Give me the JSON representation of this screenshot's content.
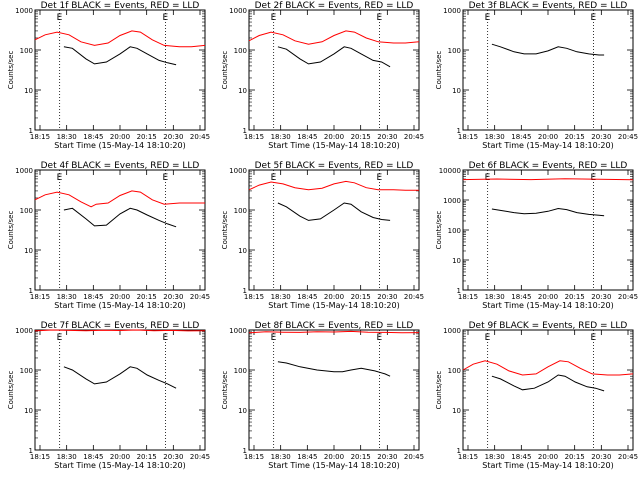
{
  "figure": {
    "title": "",
    "xlabel": "Start Time (15-May-14 18:10:20)",
    "ylabel": "Counts/sec",
    "xticks": [
      "18:15",
      "18:30",
      "18:45",
      "20:00",
      "20:15",
      "20:30",
      "20:45"
    ],
    "yticks": [
      {
        "value": 1,
        "label": "1"
      },
      {
        "value": 10,
        "label": "10"
      },
      {
        "value": 100,
        "label": "100"
      },
      {
        "value": 1000,
        "label": "1000"
      }
    ],
    "yticks_wide": [
      {
        "value": 1,
        "label": "1"
      },
      {
        "value": 10,
        "label": "10"
      },
      {
        "value": 100,
        "label": "100"
      },
      {
        "value": 1000,
        "label": "1000"
      },
      {
        "value": 10000,
        "label": "10000"
      }
    ],
    "marker_labels": [
      "E",
      "E"
    ],
    "colors": {
      "events": "#000000",
      "lld": "#ff0000"
    }
  },
  "chart_data": [
    {
      "type": "line",
      "title": "Det 1f BLACK = Events, RED = LLD",
      "ylim": [
        1,
        1000
      ],
      "log_y": true,
      "series": [
        {
          "color": "#ff0000",
          "values": [
            [
              0.0,
              180
            ],
            [
              0.06,
              240
            ],
            [
              0.13,
              280
            ],
            [
              0.2,
              240
            ],
            [
              0.27,
              160
            ],
            [
              0.35,
              130
            ],
            [
              0.43,
              150
            ],
            [
              0.5,
              230
            ],
            [
              0.57,
              300
            ],
            [
              0.62,
              280
            ],
            [
              0.69,
              180
            ],
            [
              0.76,
              130
            ],
            [
              0.85,
              120
            ],
            [
              0.92,
              120
            ],
            [
              1.0,
              130
            ]
          ]
        },
        {
          "color": "#000000",
          "values": [
            [
              0.17,
              120
            ],
            [
              0.22,
              110
            ],
            [
              0.3,
              60
            ],
            [
              0.35,
              45
            ],
            [
              0.42,
              50
            ],
            [
              0.5,
              80
            ],
            [
              0.56,
              120
            ],
            [
              0.6,
              110
            ],
            [
              0.66,
              80
            ],
            [
              0.73,
              55
            ],
            [
              0.78,
              48
            ],
            [
              0.83,
              43
            ]
          ]
        }
      ]
    },
    {
      "type": "line",
      "title": "Det 2f BLACK = Events, RED = LLD",
      "ylim": [
        1,
        1000
      ],
      "log_y": true,
      "series": [
        {
          "color": "#ff0000",
          "values": [
            [
              0.0,
              170
            ],
            [
              0.06,
              230
            ],
            [
              0.13,
              280
            ],
            [
              0.2,
              240
            ],
            [
              0.27,
              170
            ],
            [
              0.35,
              140
            ],
            [
              0.43,
              160
            ],
            [
              0.5,
              230
            ],
            [
              0.57,
              300
            ],
            [
              0.62,
              280
            ],
            [
              0.69,
              200
            ],
            [
              0.76,
              160
            ],
            [
              0.85,
              150
            ],
            [
              0.92,
              150
            ],
            [
              1.0,
              160
            ]
          ]
        },
        {
          "color": "#000000",
          "values": [
            [
              0.17,
              120
            ],
            [
              0.22,
              105
            ],
            [
              0.3,
              60
            ],
            [
              0.35,
              45
            ],
            [
              0.42,
              50
            ],
            [
              0.5,
              80
            ],
            [
              0.56,
              120
            ],
            [
              0.6,
              110
            ],
            [
              0.66,
              80
            ],
            [
              0.73,
              55
            ],
            [
              0.78,
              50
            ],
            [
              0.83,
              38
            ]
          ]
        }
      ]
    },
    {
      "type": "line",
      "title": "Det 3f BLACK = Events, RED = LLD",
      "ylim": [
        1,
        1000
      ],
      "log_y": true,
      "series": [
        {
          "color": "#000000",
          "values": [
            [
              0.17,
              140
            ],
            [
              0.22,
              120
            ],
            [
              0.3,
              90
            ],
            [
              0.36,
              80
            ],
            [
              0.43,
              80
            ],
            [
              0.5,
              95
            ],
            [
              0.56,
              120
            ],
            [
              0.61,
              110
            ],
            [
              0.67,
              90
            ],
            [
              0.74,
              80
            ],
            [
              0.8,
              75
            ],
            [
              0.83,
              75
            ]
          ]
        }
      ]
    },
    {
      "type": "line",
      "title": "Det 4f BLACK = Events, RED = LLD",
      "ylim": [
        1,
        1000
      ],
      "log_y": true,
      "series": [
        {
          "color": "#ff0000",
          "values": [
            [
              0.0,
              180
            ],
            [
              0.06,
              240
            ],
            [
              0.13,
              280
            ],
            [
              0.2,
              240
            ],
            [
              0.27,
              160
            ],
            [
              0.33,
              120
            ],
            [
              0.36,
              140
            ],
            [
              0.43,
              150
            ],
            [
              0.5,
              230
            ],
            [
              0.57,
              300
            ],
            [
              0.62,
              280
            ],
            [
              0.69,
              180
            ],
            [
              0.76,
              140
            ],
            [
              0.85,
              150
            ],
            [
              0.92,
              150
            ],
            [
              1.0,
              150
            ]
          ]
        },
        {
          "color": "#000000",
          "values": [
            [
              0.17,
              100
            ],
            [
              0.22,
              110
            ],
            [
              0.3,
              60
            ],
            [
              0.35,
              40
            ],
            [
              0.42,
              42
            ],
            [
              0.5,
              80
            ],
            [
              0.56,
              110
            ],
            [
              0.6,
              100
            ],
            [
              0.66,
              75
            ],
            [
              0.73,
              55
            ],
            [
              0.78,
              45
            ],
            [
              0.83,
              38
            ]
          ]
        }
      ]
    },
    {
      "type": "line",
      "title": "Det 5f BLACK = Events, RED = LLD",
      "ylim": [
        1,
        1000
      ],
      "log_y": true,
      "series": [
        {
          "color": "#ff0000",
          "values": [
            [
              0.0,
              320
            ],
            [
              0.06,
              420
            ],
            [
              0.13,
              500
            ],
            [
              0.2,
              450
            ],
            [
              0.27,
              360
            ],
            [
              0.35,
              320
            ],
            [
              0.43,
              350
            ],
            [
              0.5,
              450
            ],
            [
              0.57,
              520
            ],
            [
              0.62,
              480
            ],
            [
              0.69,
              360
            ],
            [
              0.76,
              320
            ],
            [
              0.85,
              320
            ],
            [
              0.92,
              310
            ],
            [
              1.0,
              310
            ]
          ]
        },
        {
          "color": "#000000",
          "values": [
            [
              0.17,
              150
            ],
            [
              0.22,
              120
            ],
            [
              0.3,
              70
            ],
            [
              0.35,
              55
            ],
            [
              0.42,
              60
            ],
            [
              0.5,
              100
            ],
            [
              0.56,
              150
            ],
            [
              0.6,
              140
            ],
            [
              0.66,
              90
            ],
            [
              0.73,
              65
            ],
            [
              0.78,
              58
            ],
            [
              0.83,
              55
            ]
          ]
        }
      ]
    },
    {
      "type": "line",
      "title": "Det 6f BLACK = Events, RED = LLD",
      "ylim": [
        1,
        10000
      ],
      "log_y": true,
      "series": [
        {
          "color": "#ff0000",
          "values": [
            [
              0.0,
              4800
            ],
            [
              0.2,
              5000
            ],
            [
              0.4,
              4800
            ],
            [
              0.6,
              5100
            ],
            [
              0.8,
              4900
            ],
            [
              1.0,
              4700
            ]
          ]
        },
        {
          "color": "#000000",
          "values": [
            [
              0.17,
              500
            ],
            [
              0.22,
              450
            ],
            [
              0.3,
              380
            ],
            [
              0.36,
              350
            ],
            [
              0.43,
              360
            ],
            [
              0.5,
              420
            ],
            [
              0.56,
              520
            ],
            [
              0.61,
              480
            ],
            [
              0.67,
              380
            ],
            [
              0.74,
              330
            ],
            [
              0.8,
              310
            ],
            [
              0.83,
              300
            ]
          ]
        }
      ]
    },
    {
      "type": "line",
      "title": "Det 7f BLACK = Events, RED = LLD",
      "ylim": [
        1,
        1000
      ],
      "log_y": true,
      "series": [
        {
          "color": "#ff0000",
          "values": [
            [
              0.0,
              950
            ],
            [
              0.1,
              1000
            ],
            [
              0.2,
              980
            ],
            [
              0.3,
              960
            ],
            [
              0.4,
              990
            ],
            [
              0.5,
              970
            ],
            [
              0.6,
              1000
            ],
            [
              0.7,
              960
            ],
            [
              0.8,
              980
            ],
            [
              0.9,
              950
            ],
            [
              1.0,
              960
            ]
          ]
        },
        {
          "color": "#000000",
          "values": [
            [
              0.17,
              120
            ],
            [
              0.22,
              100
            ],
            [
              0.3,
              60
            ],
            [
              0.35,
              45
            ],
            [
              0.42,
              50
            ],
            [
              0.5,
              80
            ],
            [
              0.56,
              120
            ],
            [
              0.6,
              110
            ],
            [
              0.66,
              75
            ],
            [
              0.73,
              55
            ],
            [
              0.78,
              45
            ],
            [
              0.83,
              35
            ]
          ]
        }
      ]
    },
    {
      "type": "line",
      "title": "Det 8f BLACK = Events, RED = LLD",
      "ylim": [
        1,
        1000
      ],
      "log_y": true,
      "series": [
        {
          "color": "#ff0000",
          "values": [
            [
              0.0,
              850
            ],
            [
              0.1,
              900
            ],
            [
              0.2,
              880
            ],
            [
              0.3,
              870
            ],
            [
              0.4,
              900
            ],
            [
              0.5,
              890
            ],
            [
              0.6,
              920
            ],
            [
              0.7,
              880
            ],
            [
              0.8,
              870
            ],
            [
              0.9,
              850
            ],
            [
              1.0,
              860
            ]
          ]
        },
        {
          "color": "#000000",
          "values": [
            [
              0.17,
              160
            ],
            [
              0.22,
              150
            ],
            [
              0.3,
              120
            ],
            [
              0.4,
              100
            ],
            [
              0.5,
              90
            ],
            [
              0.55,
              90
            ],
            [
              0.6,
              100
            ],
            [
              0.66,
              110
            ],
            [
              0.74,
              95
            ],
            [
              0.8,
              80
            ],
            [
              0.83,
              70
            ]
          ]
        }
      ]
    },
    {
      "type": "line",
      "title": "Det 9f BLACK = Events, RED = LLD",
      "ylim": [
        1,
        1000
      ],
      "log_y": true,
      "series": [
        {
          "color": "#ff0000",
          "values": [
            [
              0.0,
              100
            ],
            [
              0.06,
              140
            ],
            [
              0.13,
              170
            ],
            [
              0.2,
              140
            ],
            [
              0.27,
              95
            ],
            [
              0.35,
              75
            ],
            [
              0.43,
              80
            ],
            [
              0.5,
              120
            ],
            [
              0.57,
              170
            ],
            [
              0.62,
              160
            ],
            [
              0.69,
              110
            ],
            [
              0.76,
              80
            ],
            [
              0.85,
              75
            ],
            [
              0.92,
              75
            ],
            [
              1.0,
              80
            ]
          ]
        },
        {
          "color": "#000000",
          "values": [
            [
              0.17,
              70
            ],
            [
              0.22,
              60
            ],
            [
              0.3,
              40
            ],
            [
              0.35,
              32
            ],
            [
              0.42,
              35
            ],
            [
              0.5,
              50
            ],
            [
              0.56,
              75
            ],
            [
              0.6,
              70
            ],
            [
              0.66,
              50
            ],
            [
              0.73,
              38
            ],
            [
              0.78,
              35
            ],
            [
              0.83,
              30
            ]
          ]
        }
      ]
    }
  ]
}
